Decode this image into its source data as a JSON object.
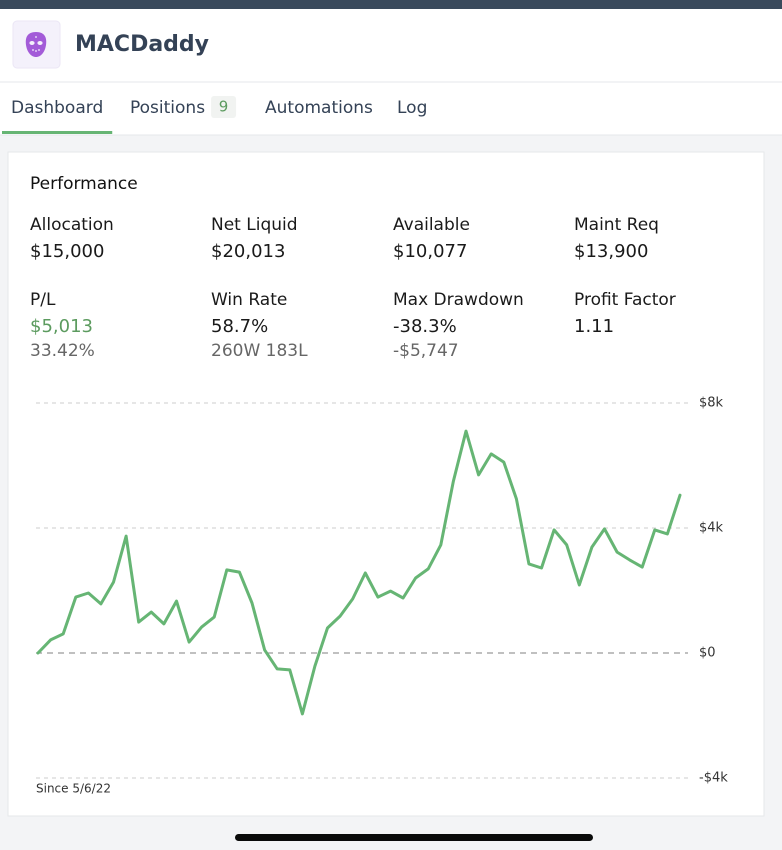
{
  "header": {
    "title": "MACDaddy"
  },
  "tabs": [
    {
      "label": "Dashboard",
      "active": true
    },
    {
      "label": "Positions",
      "badge": 9
    },
    {
      "label": "Automations"
    },
    {
      "label": "Log"
    }
  ],
  "performance": {
    "title": "Performance",
    "stats": [
      [
        {
          "label": "Allocation",
          "value": "$15,000"
        },
        {
          "label": "Net Liquid",
          "value": "$20,013"
        },
        {
          "label": "Available",
          "value": "$10,077"
        },
        {
          "label": "Maint Req",
          "value": "$13,900"
        }
      ],
      [
        {
          "label": "P/L",
          "value": "$5,013",
          "sub": "33.42%",
          "color": "#5c9b5f"
        },
        {
          "label": "Win Rate",
          "value": "58.7%",
          "sub": "260W 183L"
        },
        {
          "label": "Max Drawdown",
          "value": "-38.3%",
          "sub": "-$5,747"
        },
        {
          "label": "Profit Factor",
          "value": "1.11"
        }
      ]
    ]
  },
  "chart_data": {
    "type": "line",
    "annotation": "Since 5/6/22",
    "series": [
      {
        "name": "P/L",
        "color": "#66b574",
        "values": [
          0,
          420,
          610,
          1790,
          1920,
          1570,
          2270,
          3740,
          990,
          1310,
          930,
          1660,
          350,
          830,
          1150,
          2660,
          2590,
          1600,
          100,
          -510,
          -540,
          -1950,
          -420,
          800,
          1180,
          1730,
          2560,
          1790,
          1980,
          1760,
          2400,
          2690,
          3460,
          5500,
          7100,
          5700,
          6370,
          6110,
          4930,
          2850,
          2720,
          3940,
          3460,
          2180,
          3390,
          3970,
          3230,
          2980,
          2750,
          3940,
          3810,
          5050
        ]
      }
    ],
    "ylim": [
      -4000,
      8000
    ],
    "yticks": [
      {
        "value": -4000,
        "label": "-$4k"
      },
      {
        "value": 0,
        "label": "$0"
      },
      {
        "value": 4000,
        "label": "$4k"
      },
      {
        "value": 8000,
        "label": "$8k"
      }
    ],
    "grid": true
  }
}
